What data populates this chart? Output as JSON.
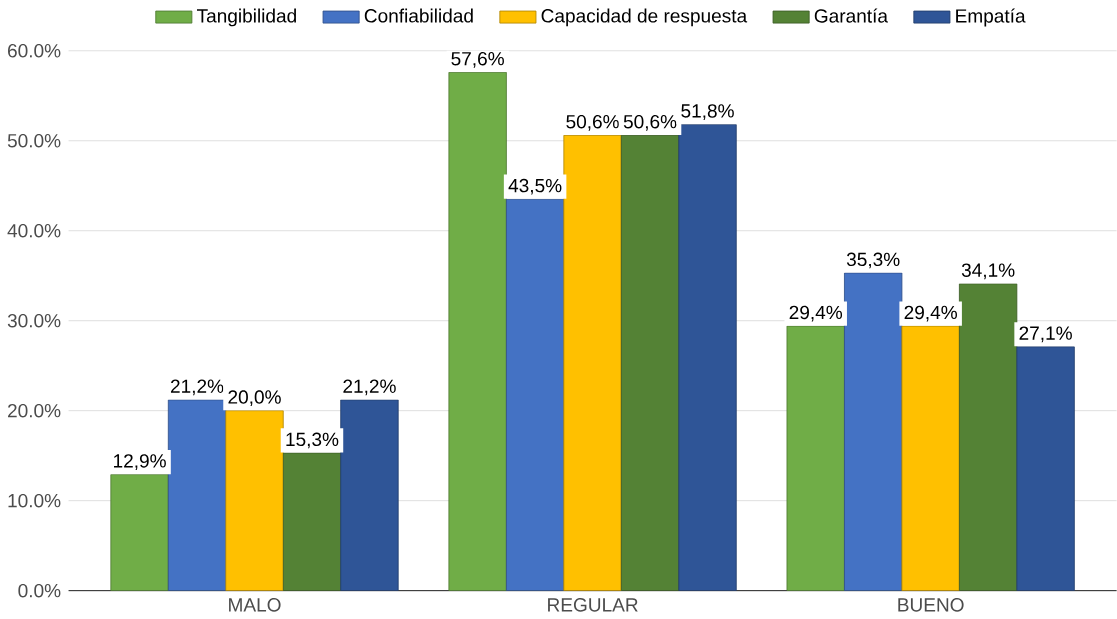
{
  "chart_data": {
    "type": "bar",
    "categories": [
      "MALO",
      "REGULAR",
      "BUENO"
    ],
    "series": [
      {
        "name": "Tangibilidad",
        "color": "#70ad47",
        "values": [
          12.9,
          57.6,
          29.4
        ],
        "value_labels": [
          "12,9%",
          "57,6%",
          "29,4%"
        ]
      },
      {
        "name": "Confiabilidad",
        "color": "#4472c4",
        "values": [
          21.2,
          43.5,
          35.3
        ],
        "value_labels": [
          "21,2%",
          "43,5%",
          "35,3%"
        ]
      },
      {
        "name": "Capacidad de respuesta",
        "color": "#ffc000",
        "values": [
          20.0,
          50.6,
          29.4
        ],
        "value_labels": [
          "20,0%",
          "50,6%",
          "29,4%"
        ]
      },
      {
        "name": "Garantía",
        "color": "#548235",
        "values": [
          15.3,
          50.6,
          34.1
        ],
        "value_labels": [
          "15,3%",
          "50,6%",
          "34,1%"
        ]
      },
      {
        "name": "Empatía",
        "color": "#2f5597",
        "values": [
          21.2,
          51.8,
          27.1
        ],
        "value_labels": [
          "21,2%",
          "51,8%",
          "27,1%"
        ]
      }
    ],
    "ylim": [
      0,
      60
    ],
    "yticks": [
      {
        "value": 0,
        "label": "0.0%"
      },
      {
        "value": 10,
        "label": "10.0%"
      },
      {
        "value": 20,
        "label": "20.0%"
      },
      {
        "value": 30,
        "label": "30.0%"
      },
      {
        "value": 40,
        "label": "40.0%"
      },
      {
        "value": 50,
        "label": "50.0%"
      },
      {
        "value": 60,
        "label": "60.0%"
      }
    ],
    "grid": "y",
    "legend": "top"
  }
}
